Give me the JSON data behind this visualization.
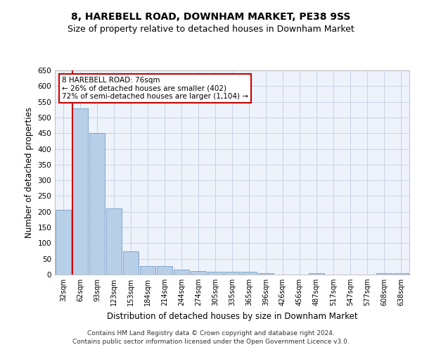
{
  "title1": "8, HAREBELL ROAD, DOWNHAM MARKET, PE38 9SS",
  "title2": "Size of property relative to detached houses in Downham Market",
  "xlabel": "Distribution of detached houses by size in Downham Market",
  "ylabel": "Number of detached properties",
  "categories": [
    "32sqm",
    "62sqm",
    "93sqm",
    "123sqm",
    "153sqm",
    "184sqm",
    "214sqm",
    "244sqm",
    "274sqm",
    "305sqm",
    "335sqm",
    "365sqm",
    "396sqm",
    "426sqm",
    "456sqm",
    "487sqm",
    "517sqm",
    "547sqm",
    "577sqm",
    "608sqm",
    "638sqm"
  ],
  "values": [
    207,
    530,
    450,
    210,
    75,
    27,
    27,
    15,
    12,
    8,
    8,
    8,
    5,
    0,
    0,
    5,
    0,
    0,
    0,
    5,
    5
  ],
  "bar_color": "#b8cfe8",
  "bar_edge_color": "#6090c0",
  "annotation_text": "8 HAREBELL ROAD: 76sqm\n← 26% of detached houses are smaller (402)\n72% of semi-detached houses are larger (1,104) →",
  "annotation_box_color": "#ffffff",
  "annotation_box_edge": "#cc0000",
  "highlight_line_color": "#cc0000",
  "ylim": [
    0,
    650
  ],
  "yticks": [
    0,
    50,
    100,
    150,
    200,
    250,
    300,
    350,
    400,
    450,
    500,
    550,
    600,
    650
  ],
  "grid_color": "#c8d4e8",
  "background_color": "#eef2fa",
  "footer_text": "Contains HM Land Registry data © Crown copyright and database right 2024.\nContains public sector information licensed under the Open Government Licence v3.0.",
  "title1_fontsize": 10,
  "title2_fontsize": 9,
  "xlabel_fontsize": 8.5,
  "ylabel_fontsize": 8.5,
  "footer_fontsize": 6.5
}
